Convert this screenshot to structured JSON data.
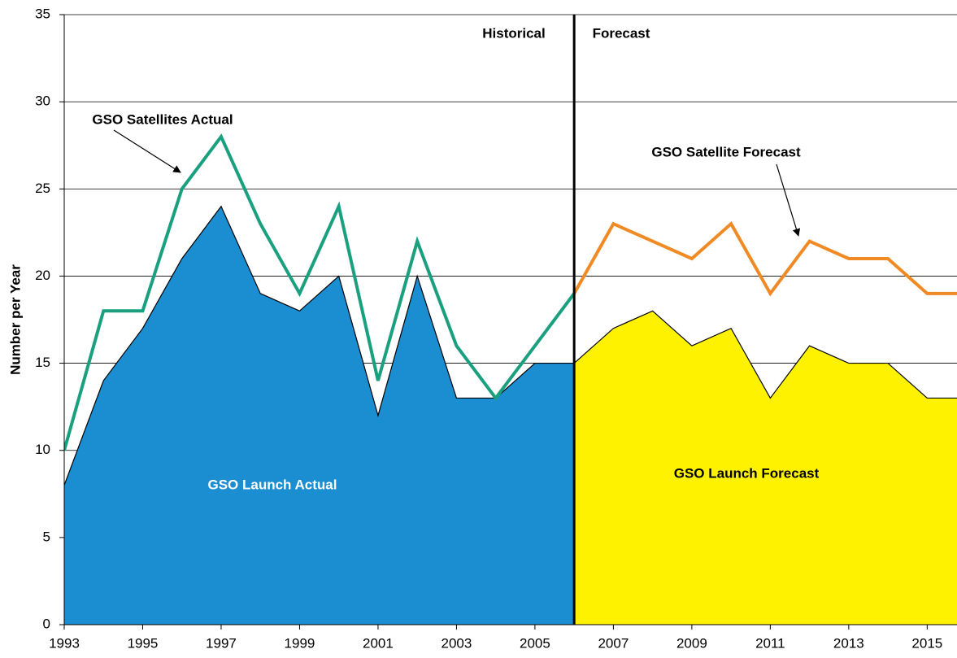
{
  "chart_data": {
    "type": "area",
    "y_label": "Number per Year",
    "annotations": [
      "Historical",
      "Forecast"
    ],
    "divider": 2006,
    "xlim": [
      1993,
      2015.76
    ],
    "ylim": [
      0,
      35
    ],
    "xticks": [
      1993,
      1995,
      1997,
      1999,
      2001,
      2003,
      2005,
      2007,
      2009,
      2011,
      2013,
      2015
    ],
    "yticks": [
      0,
      5,
      10,
      15,
      20,
      25,
      30,
      35
    ],
    "grid": true,
    "series": [
      {
        "name": "GSO Launch Actual",
        "kind": "area",
        "color": "#1b8dd1",
        "x": [
          1993,
          1994,
          1995,
          1996,
          1997,
          1998,
          1999,
          2000,
          2001,
          2002,
          2003,
          2004,
          2005,
          2006
        ],
        "values": [
          8,
          14,
          17,
          21,
          24,
          19,
          18,
          20,
          12,
          20,
          13,
          13,
          15,
          15
        ]
      },
      {
        "name": "GSO Launch Forecast",
        "kind": "area",
        "color": "#fff200",
        "x": [
          2006,
          2007,
          2008,
          2009,
          2010,
          2011,
          2012,
          2013,
          2014,
          2015,
          2016
        ],
        "values": [
          15,
          17,
          18,
          16,
          17,
          13,
          16,
          15,
          15,
          13,
          13
        ]
      },
      {
        "name": "GSO Satellites Actual",
        "kind": "line",
        "color": "#1aa07e",
        "x": [
          1993,
          1994,
          1995,
          1996,
          1997,
          1998,
          1999,
          2000,
          2001,
          2002,
          2003,
          2004,
          2005,
          2006
        ],
        "values": [
          10,
          18,
          18,
          25,
          28,
          23,
          19,
          24,
          14,
          22,
          16,
          13,
          16,
          19
        ]
      },
      {
        "name": "GSO Satellite Forecast",
        "kind": "line",
        "color": "#f08a24",
        "x": [
          2006,
          2007,
          2008,
          2009,
          2010,
          2011,
          2012,
          2013,
          2014,
          2015,
          2016
        ],
        "values": [
          19,
          23,
          22,
          21,
          23,
          19,
          22,
          21,
          21,
          19,
          19
        ]
      }
    ]
  }
}
